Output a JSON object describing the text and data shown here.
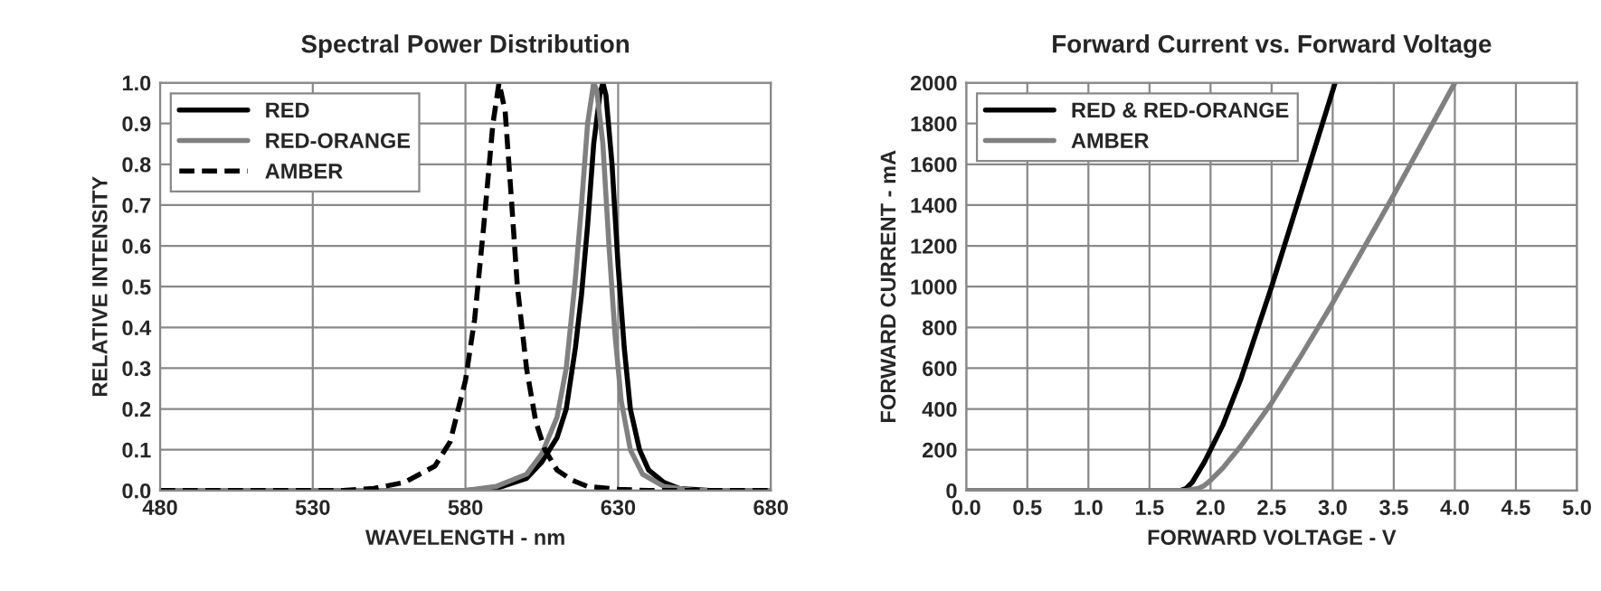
{
  "chart_data": [
    {
      "type": "line",
      "title": "Spectral Power Distribution",
      "xlabel": "WAVELENGTH - nm",
      "ylabel": "RELATIVE INTENSITY",
      "xlim": [
        480,
        680
      ],
      "xticks": [
        480,
        530,
        580,
        630,
        680
      ],
      "ylim": [
        0,
        1
      ],
      "yticks": [
        {
          "value": 0,
          "label": "0.0"
        },
        {
          "value": 0.1,
          "label": "0.1"
        },
        {
          "value": 0.2,
          "label": "0.2"
        },
        {
          "value": 0.3,
          "label": "0.3"
        },
        {
          "value": 0.4,
          "label": "0.4"
        },
        {
          "value": 0.5,
          "label": "0.5"
        },
        {
          "value": 0.6,
          "label": "0.6"
        },
        {
          "value": 0.7,
          "label": "0.7"
        },
        {
          "value": 0.8,
          "label": "0.8"
        },
        {
          "value": 0.9,
          "label": "0.9"
        },
        {
          "value": 1,
          "label": "1.0"
        }
      ],
      "grid": true,
      "legend": "top left",
      "series": [
        {
          "name": "RED",
          "color": "#000000",
          "line_style": "solid",
          "x": [
            480,
            580,
            590,
            600,
            605,
            610,
            613,
            616,
            618,
            620,
            622,
            624,
            625,
            626,
            628,
            630,
            632,
            634,
            637,
            640,
            645,
            650,
            660,
            680
          ],
          "values": [
            0,
            0,
            0.005,
            0.03,
            0.07,
            0.13,
            0.2,
            0.35,
            0.48,
            0.65,
            0.85,
            0.97,
            1.0,
            0.97,
            0.8,
            0.55,
            0.35,
            0.2,
            0.1,
            0.05,
            0.02,
            0.005,
            0,
            0
          ]
        },
        {
          "name": "RED-ORANGE",
          "color": "#808080",
          "line_style": "solid",
          "x": [
            480,
            580,
            590,
            600,
            605,
            610,
            613,
            616,
            618,
            620,
            622,
            623,
            625,
            627,
            629,
            631,
            634,
            638,
            645,
            655,
            680
          ],
          "values": [
            0,
            0,
            0.01,
            0.04,
            0.09,
            0.18,
            0.3,
            0.52,
            0.7,
            0.9,
            1.0,
            0.98,
            0.85,
            0.6,
            0.38,
            0.22,
            0.1,
            0.04,
            0.01,
            0,
            0
          ]
        },
        {
          "name": "AMBER",
          "color": "#000000",
          "line_style": "dashed",
          "x": [
            480,
            540,
            550,
            560,
            570,
            575,
            580,
            583,
            586,
            589,
            591,
            593,
            595,
            597,
            600,
            603,
            606,
            610,
            615,
            620,
            630,
            640,
            680
          ],
          "values": [
            0,
            0,
            0.005,
            0.02,
            0.06,
            0.12,
            0.27,
            0.42,
            0.65,
            0.9,
            1.0,
            0.93,
            0.72,
            0.5,
            0.3,
            0.17,
            0.1,
            0.05,
            0.025,
            0.01,
            0.003,
            0,
            0
          ]
        }
      ]
    },
    {
      "type": "line",
      "title": "Forward Current vs. Forward Voltage",
      "xlabel": "FORWARD VOLTAGE - V",
      "ylabel": "FORWARD CURRENT - mA",
      "xlim": [
        0,
        5
      ],
      "xticks": [
        {
          "value": 0,
          "label": "0.0"
        },
        {
          "value": 0.5,
          "label": "0.5"
        },
        {
          "value": 1,
          "label": "1.0"
        },
        {
          "value": 1.5,
          "label": "1.5"
        },
        {
          "value": 2,
          "label": "2.0"
        },
        {
          "value": 2.5,
          "label": "2.5"
        },
        {
          "value": 3,
          "label": "3.0"
        },
        {
          "value": 3.5,
          "label": "3.5"
        },
        {
          "value": 4,
          "label": "4.0"
        },
        {
          "value": 4.5,
          "label": "4.5"
        },
        {
          "value": 5,
          "label": "5.0"
        }
      ],
      "ylim": [
        0,
        2000
      ],
      "yticks": [
        0,
        200,
        400,
        600,
        800,
        1000,
        1200,
        1400,
        1600,
        1800,
        2000
      ],
      "grid": true,
      "legend": "top left",
      "series": [
        {
          "name": "RED & RED-ORANGE",
          "color": "#000000",
          "line_style": "solid",
          "x": [
            0,
            1.75,
            1.8,
            1.85,
            1.9,
            1.95,
            2.0,
            2.1,
            2.25,
            2.5,
            2.75,
            3.02
          ],
          "values": [
            0,
            0,
            10,
            40,
            90,
            140,
            200,
            320,
            550,
            1000,
            1480,
            2000
          ]
        },
        {
          "name": "AMBER",
          "color": "#808080",
          "line_style": "solid",
          "x": [
            0,
            1.8,
            1.9,
            1.95,
            2.0,
            2.1,
            2.25,
            2.5,
            2.75,
            3.0,
            3.5,
            4.0
          ],
          "values": [
            0,
            0,
            10,
            25,
            50,
            110,
            220,
            430,
            670,
            920,
            1450,
            2000
          ]
        }
      ]
    }
  ]
}
